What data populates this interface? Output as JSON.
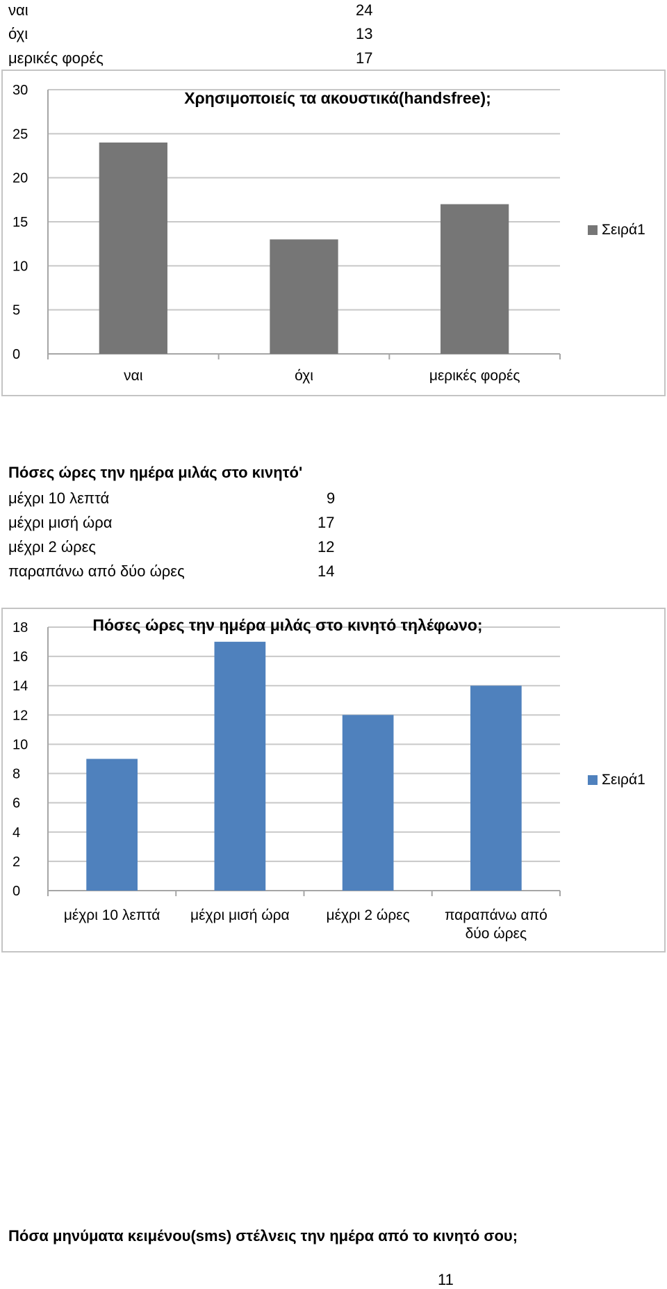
{
  "table1": {
    "rows": [
      {
        "label": "ναι",
        "value": "24"
      },
      {
        "label": "όχι",
        "value": "13"
      },
      {
        "label": "μερικές φορές",
        "value": "17"
      }
    ]
  },
  "section2": {
    "heading": "Πόσες ώρες την ημέρα μιλάς στο κινητό'",
    "rows": [
      {
        "label": "μέχρι 10 λεπτά",
        "value": "9"
      },
      {
        "label": "μέχρι μισή ώρα",
        "value": "17"
      },
      {
        "label": "μέχρι 2 ώρες",
        "value": "12"
      },
      {
        "label": "παραπάνω από δύο ώρες",
        "value": "14"
      }
    ]
  },
  "section3": {
    "heading": "Πόσα μηνύματα κειμένου(sms) στέλνεις την ημέρα από το κινητό σου;"
  },
  "page_number": "11",
  "chart_data": [
    {
      "type": "bar",
      "title": "Χρησιμοποιείς τα ακουστικά(handsfree);",
      "categories": [
        "ναι",
        "όχι",
        "μερικές φορές"
      ],
      "series": [
        {
          "name": "Σειρά1",
          "values": [
            24,
            13,
            17
          ]
        }
      ],
      "ylim": [
        0,
        30
      ],
      "yticks": [
        0,
        5,
        10,
        15,
        20,
        25,
        30
      ],
      "grid": true,
      "legend": "right",
      "color": "#767676",
      "xlabel": "",
      "ylabel": ""
    },
    {
      "type": "bar",
      "title": "Πόσες ώρες την ημέρα μιλάς στο κινητό τηλέφωνο;",
      "categories": [
        "μέχρι 10 λεπτά",
        "μέχρι μισή ώρα",
        "μέχρι 2 ώρες",
        "παραπάνω από δύο ώρες"
      ],
      "series": [
        {
          "name": "Σειρά1",
          "values": [
            9,
            17,
            12,
            14
          ]
        }
      ],
      "ylim": [
        0,
        18
      ],
      "yticks": [
        0,
        2,
        4,
        6,
        8,
        10,
        12,
        14,
        16,
        18
      ],
      "grid": true,
      "legend": "right",
      "color": "#4f81bd",
      "xlabel": "",
      "ylabel": ""
    }
  ]
}
